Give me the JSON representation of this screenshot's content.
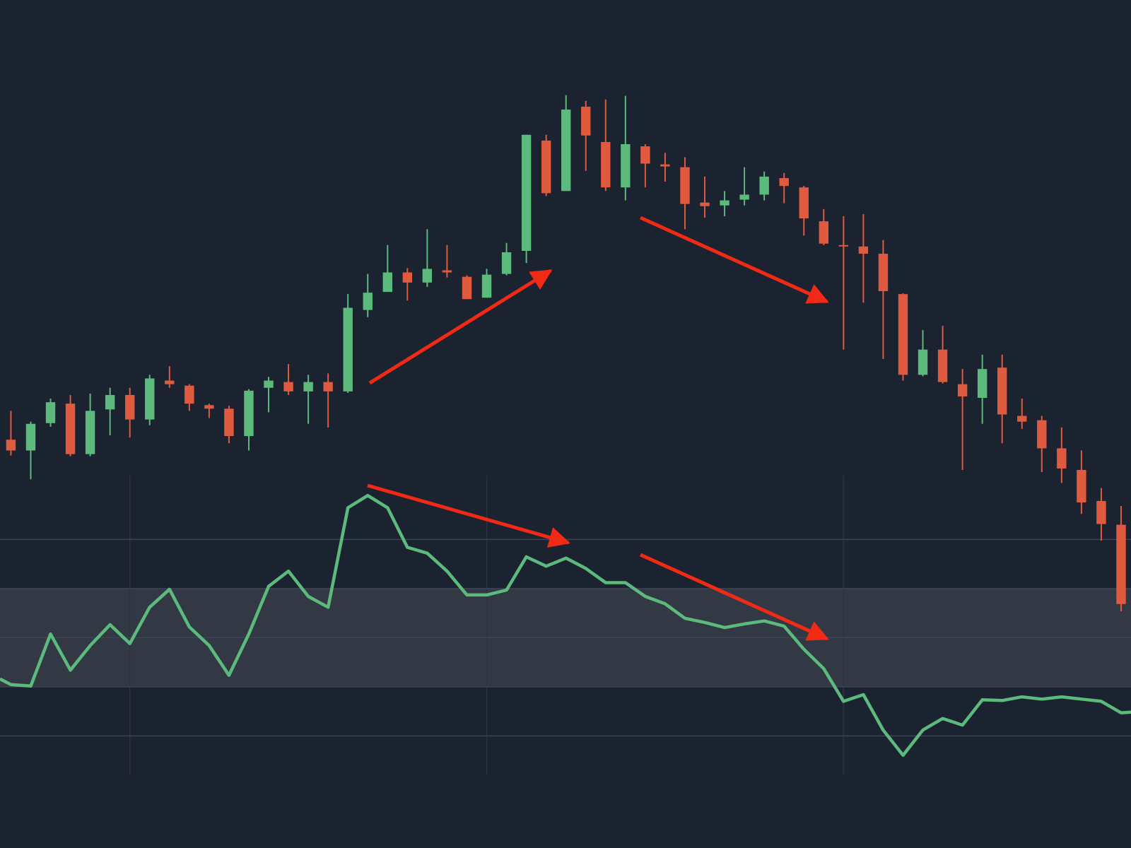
{
  "chart_data": [
    {
      "type": "candlestick",
      "up_color": "#5dba7d",
      "down_color": "#e05a3f",
      "xlim": [
        -0.55,
        56.5
      ],
      "ylim": [
        0,
        90
      ],
      "open": [
        29.0,
        27.5,
        31.3,
        34.0,
        27.0,
        33.2,
        35.2,
        31.8,
        37.2,
        36.5,
        33.8,
        33.3,
        29.5,
        36.2,
        37.0,
        35.7,
        37.0,
        35.7,
        47.0,
        49.5,
        52.2,
        50.8,
        52.5,
        51.6,
        48.7,
        52.0,
        55.2,
        70.5,
        63.5,
        75.2,
        70.3,
        64.0,
        69.7,
        67.2,
        66.8,
        61.9,
        61.5,
        62.3,
        63.0,
        65.3,
        64.0,
        59.3,
        56.0,
        55.8,
        54.8,
        49.2,
        38.0,
        41.5,
        36.7,
        34.8,
        39.0,
        32.3,
        31.7,
        27.8,
        24.8,
        20.5,
        17.2
      ],
      "high": [
        33.0,
        31.5,
        34.7,
        35.2,
        35.4,
        36.2,
        36.2,
        38.0,
        39.2,
        36.7,
        34.0,
        33.7,
        36.0,
        37.7,
        39.5,
        38.0,
        38.2,
        49.2,
        52.0,
        56.0,
        52.8,
        58.2,
        56.0,
        51.8,
        52.7,
        56.3,
        71.3,
        71.3,
        76.8,
        76.0,
        76.2,
        76.7,
        70.0,
        68.8,
        68.2,
        65.5,
        63.5,
        66.8,
        66.2,
        66.0,
        64.2,
        61.0,
        60.0,
        60.3,
        56.7,
        49.3,
        44.2,
        44.8,
        38.8,
        40.8,
        40.8,
        34.7,
        32.3,
        30.7,
        27.5,
        22.3,
        19.8
      ],
      "low": [
        26.8,
        23.5,
        30.8,
        26.7,
        26.7,
        29.6,
        29.3,
        31.0,
        36.2,
        33.0,
        32.0,
        28.5,
        27.5,
        32.8,
        35.2,
        31.2,
        30.7,
        35.5,
        46.0,
        49.5,
        48.3,
        50.2,
        51.5,
        48.5,
        48.7,
        51.8,
        53.5,
        62.8,
        63.5,
        66.3,
        63.5,
        62.2,
        64.0,
        64.8,
        58.2,
        59.8,
        60.0,
        61.5,
        62.2,
        61.8,
        57.3,
        56.0,
        41.5,
        48.0,
        40.2,
        37.2,
        37.8,
        36.8,
        24.8,
        31.2,
        28.5,
        30.5,
        24.5,
        23.0,
        18.7,
        15.0,
        5.2
      ],
      "close": [
        27.5,
        31.2,
        34.2,
        27.0,
        33.0,
        35.2,
        31.8,
        37.5,
        36.7,
        34.0,
        33.3,
        29.5,
        35.8,
        37.2,
        35.7,
        37.0,
        35.7,
        47.3,
        49.4,
        52.2,
        50.8,
        52.7,
        52.2,
        48.5,
        51.9,
        55.0,
        71.3,
        63.2,
        74.8,
        71.2,
        64.0,
        70.0,
        67.3,
        66.9,
        61.7,
        61.4,
        62.2,
        63.0,
        65.5,
        64.2,
        59.7,
        56.2,
        55.8,
        54.8,
        49.6,
        38.0,
        41.5,
        37.0,
        35.0,
        38.8,
        32.5,
        31.5,
        27.8,
        25.0,
        20.3,
        17.3,
        6.2
      ]
    },
    {
      "type": "line",
      "color": "#5dba7d",
      "grid": true,
      "band_color": "#323945",
      "xlim": [
        -0.55,
        56.5
      ],
      "ylim": [
        -6,
        116
      ],
      "xticks": [
        6,
        24,
        42
      ],
      "yticks": [
        10,
        30,
        50,
        70,
        90
      ],
      "band": [
        30,
        70
      ],
      "x": [
        -0.55,
        0,
        1,
        2,
        3,
        4,
        5,
        6,
        7,
        8,
        9,
        10,
        11,
        12,
        13,
        14,
        15,
        16,
        17,
        18,
        19,
        20,
        21,
        22,
        23,
        24,
        25,
        26,
        27,
        28,
        29,
        30,
        31,
        32,
        33,
        34,
        35,
        36,
        37,
        38,
        39,
        40,
        41,
        42,
        43,
        44,
        45,
        46,
        47,
        48,
        49,
        50,
        51,
        52,
        53,
        54,
        55,
        56,
        56.5
      ],
      "values": [
        33.2,
        30.9,
        30.3,
        51.5,
        36.8,
        46.8,
        55.3,
        47.6,
        62.4,
        69.7,
        54.4,
        46.8,
        34.7,
        51.5,
        70.9,
        77.1,
        66.8,
        62.4,
        102.9,
        107.9,
        102.9,
        86.8,
        84.4,
        77.1,
        67.4,
        67.4,
        69.4,
        82.9,
        79.1,
        82.4,
        78.2,
        72.4,
        72.4,
        66.8,
        63.8,
        57.9,
        56.2,
        54.1,
        55.6,
        56.8,
        54.7,
        45.3,
        37.4,
        24.1,
        26.8,
        12.4,
        2.1,
        12.4,
        17.1,
        14.4,
        24.7,
        24.4,
        25.9,
        25.0,
        25.9,
        25.0,
        24.1,
        19.4,
        19.7
      ]
    }
  ]
}
